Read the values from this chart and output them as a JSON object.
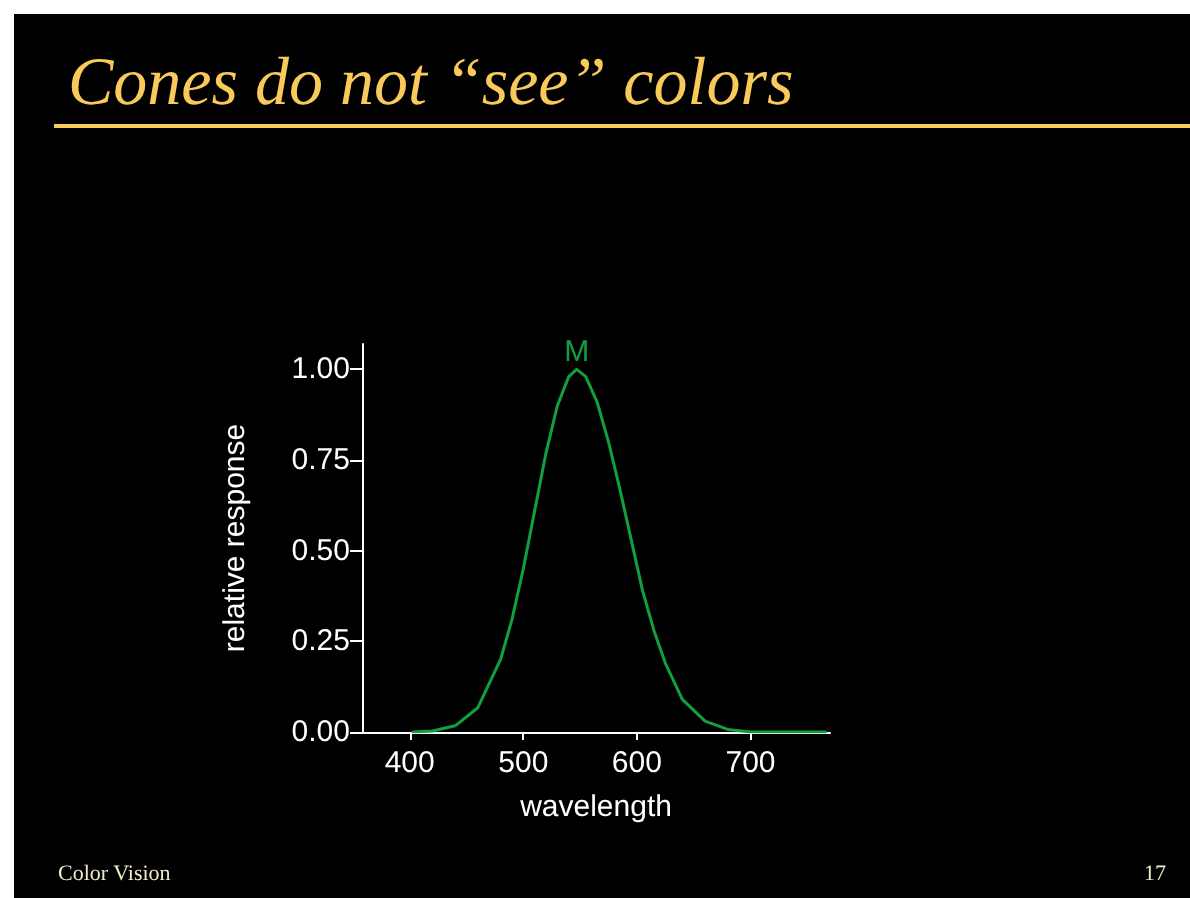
{
  "chart_data": {
    "type": "line",
    "title": "Cones do not “see” colors",
    "xlabel": "wavelength",
    "ylabel": "relative response",
    "annotations": [
      "Color Vision",
      "17"
    ],
    "x": [
      403,
      420,
      440,
      460,
      480,
      490,
      500,
      510,
      520,
      530,
      540,
      547,
      555,
      565,
      575,
      585,
      595,
      605,
      615,
      625,
      640,
      660,
      680,
      700,
      766
    ],
    "series": [
      {
        "name": "M",
        "color": "#10a040",
        "values": [
          0,
          0.003,
          0.017,
          0.067,
          0.2,
          0.31,
          0.45,
          0.61,
          0.77,
          0.9,
          0.98,
          1.0,
          0.98,
          0.91,
          0.8,
          0.67,
          0.53,
          0.39,
          0.28,
          0.19,
          0.09,
          0.03,
          0.007,
          0,
          0
        ]
      }
    ],
    "xlim": [
      358,
      770
    ],
    "xticks": [
      400,
      500,
      600,
      700
    ],
    "ylim": [
      0,
      1.07
    ],
    "yticks": [
      {
        "value": 0,
        "label": "0.00"
      },
      {
        "value": 0.25,
        "label": "0.25"
      },
      {
        "value": 0.5,
        "label": "0.50"
      },
      {
        "value": 0.75,
        "label": "0.75"
      },
      {
        "value": 1,
        "label": "1.00"
      }
    ],
    "grid": false,
    "legend": false,
    "marker": "none",
    "line_style": "solid"
  }
}
